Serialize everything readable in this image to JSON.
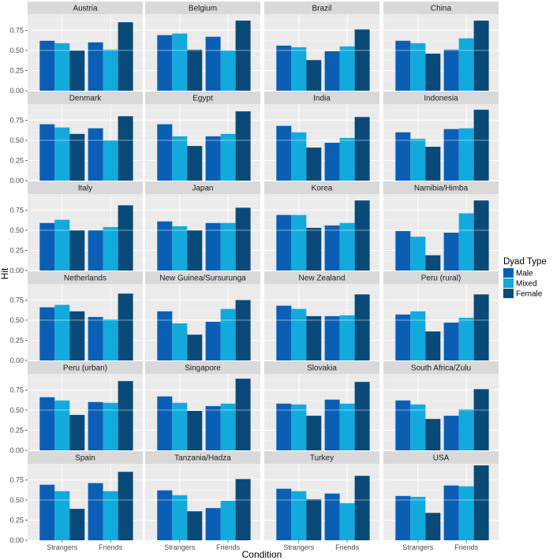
{
  "chart_data": {
    "type": "bar",
    "facet_layout": "wrap",
    "xlabel": "Condition",
    "ylabel": "Hit",
    "categories": [
      "Strangers",
      "Friends"
    ],
    "ylim": [
      0,
      0.95
    ],
    "yticks": [
      0.0,
      0.25,
      0.5,
      0.75
    ],
    "ytick_labels": [
      "0.00",
      "0.25",
      "0.50",
      "0.75"
    ],
    "reference_line": 0.5,
    "grid": true,
    "legend": {
      "title": "Dyad Type",
      "placement": "right",
      "entries": [
        {
          "name": "Male",
          "color": "#0a5fb4"
        },
        {
          "name": "Mixed",
          "color": "#12aadc"
        },
        {
          "name": "Female",
          "color": "#0a4a78"
        }
      ]
    },
    "panels": [
      {
        "title": "Austria",
        "series": [
          {
            "name": "Male",
            "values": [
              0.62,
              0.6
            ]
          },
          {
            "name": "Mixed",
            "values": [
              0.59,
              0.51
            ]
          },
          {
            "name": "Female",
            "values": [
              0.5,
              0.85
            ]
          }
        ]
      },
      {
        "title": "Belgium",
        "series": [
          {
            "name": "Male",
            "values": [
              0.69,
              0.67
            ]
          },
          {
            "name": "Mixed",
            "values": [
              0.71,
              0.5
            ]
          },
          {
            "name": "Female",
            "values": [
              0.51,
              0.87
            ]
          }
        ]
      },
      {
        "title": "Brazil",
        "series": [
          {
            "name": "Male",
            "values": [
              0.56,
              0.49
            ]
          },
          {
            "name": "Mixed",
            "values": [
              0.54,
              0.55
            ]
          },
          {
            "name": "Female",
            "values": [
              0.38,
              0.76
            ]
          }
        ]
      },
      {
        "title": "China",
        "series": [
          {
            "name": "Male",
            "values": [
              0.62,
              0.51
            ]
          },
          {
            "name": "Mixed",
            "values": [
              0.59,
              0.65
            ]
          },
          {
            "name": "Female",
            "values": [
              0.46,
              0.87
            ]
          }
        ]
      },
      {
        "title": "Denmark",
        "series": [
          {
            "name": "Male",
            "values": [
              0.7,
              0.65
            ]
          },
          {
            "name": "Mixed",
            "values": [
              0.66,
              0.5
            ]
          },
          {
            "name": "Female",
            "values": [
              0.58,
              0.8
            ]
          }
        ]
      },
      {
        "title": "Egypt",
        "series": [
          {
            "name": "Male",
            "values": [
              0.7,
              0.55
            ]
          },
          {
            "name": "Mixed",
            "values": [
              0.55,
              0.58
            ]
          },
          {
            "name": "Female",
            "values": [
              0.43,
              0.86
            ]
          }
        ]
      },
      {
        "title": "India",
        "series": [
          {
            "name": "Male",
            "values": [
              0.68,
              0.47
            ]
          },
          {
            "name": "Mixed",
            "values": [
              0.6,
              0.53
            ]
          },
          {
            "name": "Female",
            "values": [
              0.41,
              0.79
            ]
          }
        ]
      },
      {
        "title": "Indonesia",
        "series": [
          {
            "name": "Male",
            "values": [
              0.6,
              0.64
            ]
          },
          {
            "name": "Mixed",
            "values": [
              0.52,
              0.65
            ]
          },
          {
            "name": "Female",
            "values": [
              0.42,
              0.88
            ]
          }
        ]
      },
      {
        "title": "Italy",
        "series": [
          {
            "name": "Male",
            "values": [
              0.59,
              0.5
            ]
          },
          {
            "name": "Mixed",
            "values": [
              0.63,
              0.54
            ]
          },
          {
            "name": "Female",
            "values": [
              0.5,
              0.81
            ]
          }
        ]
      },
      {
        "title": "Japan",
        "series": [
          {
            "name": "Male",
            "values": [
              0.61,
              0.59
            ]
          },
          {
            "name": "Mixed",
            "values": [
              0.55,
              0.59
            ]
          },
          {
            "name": "Female",
            "values": [
              0.5,
              0.78
            ]
          }
        ]
      },
      {
        "title": "Korea",
        "series": [
          {
            "name": "Male",
            "values": [
              0.69,
              0.56
            ]
          },
          {
            "name": "Mixed",
            "values": [
              0.69,
              0.59
            ]
          },
          {
            "name": "Female",
            "values": [
              0.53,
              0.87
            ]
          }
        ]
      },
      {
        "title": "Namibia/Himba",
        "series": [
          {
            "name": "Male",
            "values": [
              0.49,
              0.47
            ]
          },
          {
            "name": "Mixed",
            "values": [
              0.42,
              0.71
            ]
          },
          {
            "name": "Female",
            "values": [
              0.19,
              0.87
            ]
          }
        ]
      },
      {
        "title": "Netherlands",
        "series": [
          {
            "name": "Male",
            "values": [
              0.66,
              0.54
            ]
          },
          {
            "name": "Mixed",
            "values": [
              0.69,
              0.51
            ]
          },
          {
            "name": "Female",
            "values": [
              0.61,
              0.83
            ]
          }
        ]
      },
      {
        "title": "New Guinea/Sursurunga",
        "series": [
          {
            "name": "Male",
            "values": [
              0.61,
              0.48
            ]
          },
          {
            "name": "Mixed",
            "values": [
              0.46,
              0.64
            ]
          },
          {
            "name": "Female",
            "values": [
              0.32,
              0.75
            ]
          }
        ]
      },
      {
        "title": "New Zealand",
        "series": [
          {
            "name": "Male",
            "values": [
              0.68,
              0.55
            ]
          },
          {
            "name": "Mixed",
            "values": [
              0.64,
              0.56
            ]
          },
          {
            "name": "Female",
            "values": [
              0.55,
              0.82
            ]
          }
        ]
      },
      {
        "title": "Peru (rural)",
        "series": [
          {
            "name": "Male",
            "values": [
              0.57,
              0.47
            ]
          },
          {
            "name": "Mixed",
            "values": [
              0.61,
              0.53
            ]
          },
          {
            "name": "Female",
            "values": [
              0.36,
              0.82
            ]
          }
        ]
      },
      {
        "title": "Peru (urban)",
        "series": [
          {
            "name": "Male",
            "values": [
              0.66,
              0.6
            ]
          },
          {
            "name": "Mixed",
            "values": [
              0.62,
              0.59
            ]
          },
          {
            "name": "Female",
            "values": [
              0.44,
              0.86
            ]
          }
        ]
      },
      {
        "title": "Singapore",
        "series": [
          {
            "name": "Male",
            "values": [
              0.67,
              0.55
            ]
          },
          {
            "name": "Mixed",
            "values": [
              0.59,
              0.58
            ]
          },
          {
            "name": "Female",
            "values": [
              0.49,
              0.89
            ]
          }
        ]
      },
      {
        "title": "Slovakia",
        "series": [
          {
            "name": "Male",
            "values": [
              0.58,
              0.63
            ]
          },
          {
            "name": "Mixed",
            "values": [
              0.57,
              0.58
            ]
          },
          {
            "name": "Female",
            "values": [
              0.43,
              0.85
            ]
          }
        ]
      },
      {
        "title": "South Africa/Zulu",
        "series": [
          {
            "name": "Male",
            "values": [
              0.62,
              0.43
            ]
          },
          {
            "name": "Mixed",
            "values": [
              0.57,
              0.51
            ]
          },
          {
            "name": "Female",
            "values": [
              0.39,
              0.76
            ]
          }
        ]
      },
      {
        "title": "Spain",
        "series": [
          {
            "name": "Male",
            "values": [
              0.69,
              0.71
            ]
          },
          {
            "name": "Mixed",
            "values": [
              0.61,
              0.61
            ]
          },
          {
            "name": "Female",
            "values": [
              0.39,
              0.85
            ]
          }
        ]
      },
      {
        "title": "Tanzania/Hadza",
        "series": [
          {
            "name": "Male",
            "values": [
              0.62,
              0.4
            ]
          },
          {
            "name": "Mixed",
            "values": [
              0.56,
              0.49
            ]
          },
          {
            "name": "Female",
            "values": [
              0.36,
              0.76
            ]
          }
        ]
      },
      {
        "title": "Turkey",
        "series": [
          {
            "name": "Male",
            "values": [
              0.64,
              0.58
            ]
          },
          {
            "name": "Mixed",
            "values": [
              0.61,
              0.46
            ]
          },
          {
            "name": "Female",
            "values": [
              0.51,
              0.8
            ]
          }
        ]
      },
      {
        "title": "USA",
        "series": [
          {
            "name": "Male",
            "values": [
              0.55,
              0.68
            ]
          },
          {
            "name": "Mixed",
            "values": [
              0.54,
              0.67
            ]
          },
          {
            "name": "Female",
            "values": [
              0.34,
              0.93
            ]
          }
        ]
      }
    ]
  }
}
